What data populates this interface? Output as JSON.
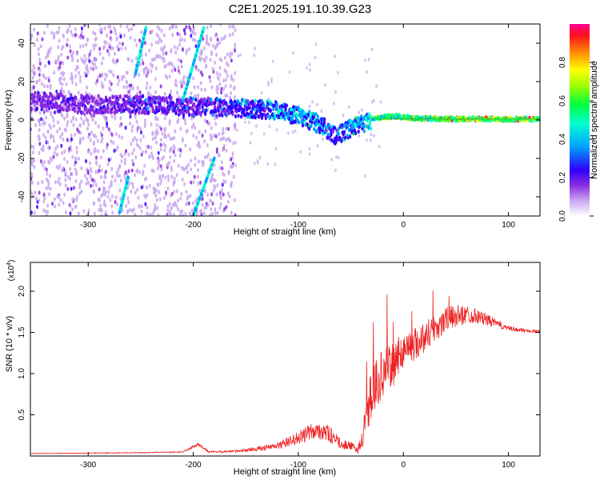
{
  "title": "C2E1.2025.191.10.39.G23",
  "chart_data": [
    {
      "type": "heatmap",
      "xlabel": "Height of straight line (km)",
      "ylabel": "Frequency (Hz)",
      "xlim": [
        -355,
        130
      ],
      "ylim": [
        -50,
        50
      ],
      "xticks": [
        -300,
        -200,
        -100,
        0,
        100
      ],
      "yticks": [
        -40,
        -20,
        0,
        20,
        40
      ],
      "colorbar": {
        "label": "Normalized spectral amplitude",
        "range": [
          0.0,
          1.0
        ],
        "ticks": [
          "0.0",
          "0.2",
          "0.4",
          "0.6",
          "0.8"
        ],
        "colormap": [
          "#ffffff",
          "#b39ddb",
          "#6a00ff",
          "#0000ff",
          "#00c8ff",
          "#00ff80",
          "#ffff00",
          "#ff8000",
          "#ff0040",
          "#ff0080"
        ]
      },
      "band": [
        {
          "x": -355,
          "f": 10,
          "amp": 0.25
        },
        {
          "x": -300,
          "f": 8,
          "amp": 0.25
        },
        {
          "x": -250,
          "f": 8,
          "amp": 0.3
        },
        {
          "x": -200,
          "f": 7,
          "amp": 0.3
        },
        {
          "x": -150,
          "f": 6,
          "amp": 0.4
        },
        {
          "x": -120,
          "f": 5,
          "amp": 0.45
        },
        {
          "x": -100,
          "f": 2,
          "amp": 0.5
        },
        {
          "x": -80,
          "f": -2,
          "amp": 0.5
        },
        {
          "x": -65,
          "f": -8,
          "amp": 0.4
        },
        {
          "x": -55,
          "f": -6,
          "amp": 0.45
        },
        {
          "x": -40,
          "f": -2,
          "amp": 0.55
        },
        {
          "x": -25,
          "f": 1,
          "amp": 0.75
        },
        {
          "x": -10,
          "f": 2,
          "amp": 0.85
        },
        {
          "x": 10,
          "f": 1,
          "amp": 0.9
        },
        {
          "x": 40,
          "f": 0.5,
          "amp": 0.95
        },
        {
          "x": 80,
          "f": 0.5,
          "amp": 1.0
        },
        {
          "x": 130,
          "f": 0.5,
          "amp": 1.0
        }
      ],
      "streaks": [
        {
          "x0": -210,
          "f0": 10,
          "x1": -190,
          "f1": 48
        },
        {
          "x0": -255,
          "f0": 24,
          "x1": -245,
          "f1": 48
        },
        {
          "x0": -200,
          "f0": -50,
          "x1": -180,
          "f1": -20
        },
        {
          "x0": -270,
          "f0": -48,
          "x1": -262,
          "f1": -30
        }
      ]
    },
    {
      "type": "line",
      "xlabel": "Height of straight line (km)",
      "ylabel": "SNR (10 * v/v)",
      "exponent_label": "(x10",
      "exponent_sup": "4",
      "exponent_close": ")",
      "xlim": [
        -355,
        130
      ],
      "ylim": [
        0,
        23500
      ],
      "xticks": [
        -300,
        -200,
        -100,
        0,
        100
      ],
      "yticks": [
        5000,
        10000,
        15000,
        20000
      ],
      "ytick_labels": [
        "0.5",
        "1.0",
        "1.5",
        "2.0"
      ],
      "series": [
        {
          "color": "#ee2222",
          "x": [
            -355,
            -300,
            -250,
            -210,
            -195,
            -185,
            -170,
            -150,
            -120,
            -100,
            -90,
            -80,
            -70,
            -60,
            -50,
            -45,
            -40,
            -35,
            -30,
            -25,
            -20,
            -15,
            -10,
            -5,
            0,
            10,
            20,
            30,
            40,
            50,
            60,
            70,
            80,
            90,
            100,
            110,
            120,
            130
          ],
          "y": [
            300,
            350,
            400,
            500,
            1400,
            500,
            500,
            700,
            1200,
            2200,
            2800,
            3200,
            2600,
            1500,
            1200,
            800,
            1500,
            4500,
            8000,
            9000,
            10000,
            10500,
            11000,
            12000,
            13000,
            13500,
            14500,
            15500,
            16500,
            17000,
            17200,
            17000,
            16500,
            16000,
            15500,
            15300,
            15200,
            15100
          ],
          "noise": [
            30,
            40,
            50,
            60,
            200,
            100,
            100,
            200,
            400,
            800,
            1000,
            1200,
            1000,
            600,
            500,
            500,
            1200,
            2500,
            3000,
            3000,
            3000,
            2800,
            2600,
            2400,
            2200,
            2000,
            2000,
            1800,
            1600,
            1400,
            1100,
            900,
            700,
            500,
            300,
            250,
            200,
            200
          ]
        }
      ]
    }
  ]
}
